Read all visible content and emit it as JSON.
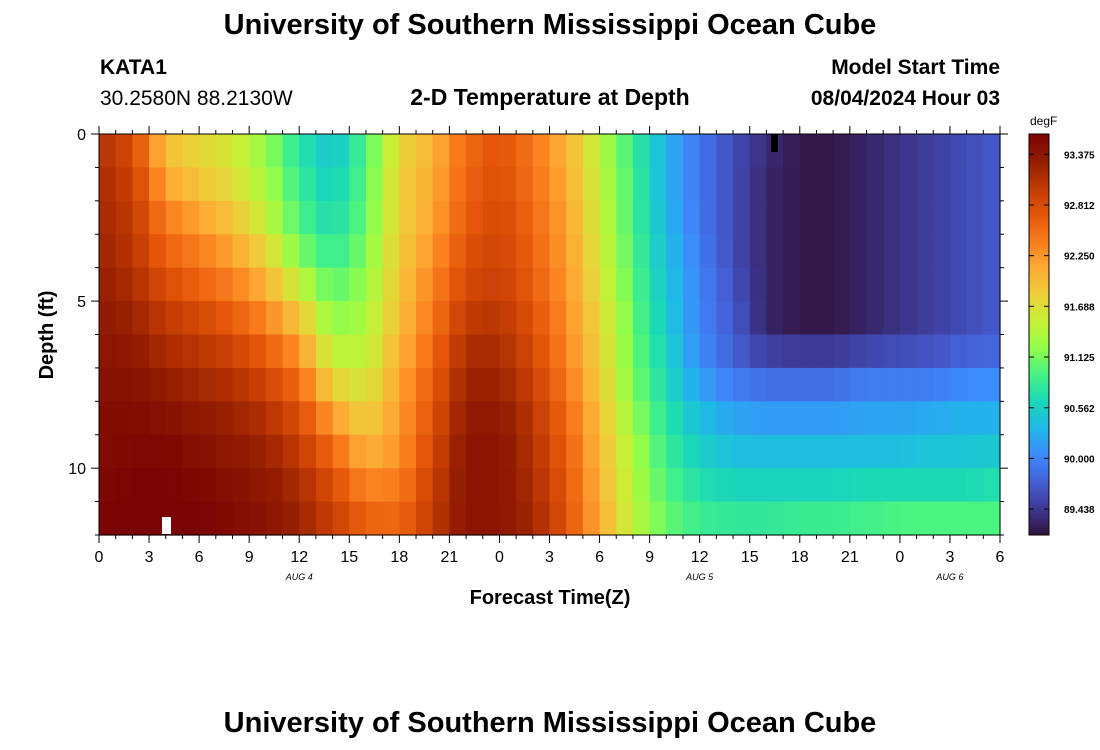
{
  "header": {
    "title": "University of Southern Mississippi Ocean Cube",
    "station_id": "KATA1",
    "station_coords": "30.2580N  88.2130W",
    "plot_title": "2-D Temperature at Depth",
    "model_start_label": "Model Start Time",
    "model_start_value": "08/04/2024 Hour 03"
  },
  "footer": {
    "title": "University of Southern Mississippi Ocean Cube"
  },
  "chart_data": {
    "type": "heatmap",
    "title": "2-D Temperature at Depth",
    "xlabel": "Forecast Time(Z)",
    "ylabel": "Depth (ft)",
    "x_range_hours": [
      0,
      54
    ],
    "y_range_ft": [
      0,
      12
    ],
    "x_tick_labels": [
      "0",
      "3",
      "6",
      "9",
      "12",
      "15",
      "18",
      "21",
      "0",
      "3",
      "6",
      "9",
      "12",
      "15",
      "18",
      "21",
      "0",
      "3",
      "6"
    ],
    "y_tick_labels": [
      "0",
      "5",
      "10"
    ],
    "date_labels": [
      {
        "text": "AUG 4",
        "hour": 12
      },
      {
        "text": "AUG 5",
        "hour": 36
      },
      {
        "text": "AUG 6",
        "hour": 51
      }
    ],
    "colorbar": {
      "unit": "degF",
      "min": 89.15,
      "max": 93.6,
      "tick_labels": [
        "93.375",
        "92.812",
        "92.250",
        "91.688",
        "91.125",
        "90.562",
        "90.000",
        "89.438"
      ]
    },
    "time_hours": [
      0,
      2,
      4,
      6,
      8,
      10,
      12,
      14,
      16,
      18,
      20,
      22,
      24,
      26,
      28,
      30,
      32,
      34,
      36,
      38,
      40,
      42,
      44,
      46,
      48,
      50,
      52,
      54
    ],
    "depth_ft": [
      0,
      1,
      2,
      3,
      4,
      5,
      6,
      7,
      8,
      9,
      10,
      11,
      12
    ],
    "temperature_degF": [
      [
        93.1,
        92.8,
        91.9,
        91.7,
        91.6,
        91.2,
        90.7,
        90.4,
        90.9,
        91.7,
        92.0,
        92.5,
        92.7,
        92.4,
        92.0,
        91.4,
        90.8,
        90.3,
        89.9,
        89.6,
        89.4,
        89.2,
        89.2,
        89.3,
        89.4,
        89.5,
        89.6,
        89.7
      ],
      [
        93.1,
        92.9,
        92.0,
        91.8,
        91.6,
        91.3,
        90.8,
        90.5,
        91.0,
        91.8,
        92.1,
        92.6,
        92.8,
        92.5,
        92.1,
        91.5,
        90.9,
        90.3,
        89.9,
        89.6,
        89.3,
        89.2,
        89.2,
        89.3,
        89.4,
        89.5,
        89.6,
        89.7
      ],
      [
        93.2,
        93.0,
        92.3,
        92.0,
        91.8,
        91.4,
        90.9,
        90.6,
        91.0,
        91.8,
        92.1,
        92.6,
        92.8,
        92.5,
        92.1,
        91.5,
        90.9,
        90.3,
        89.9,
        89.6,
        89.3,
        89.2,
        89.2,
        89.3,
        89.4,
        89.5,
        89.6,
        89.7
      ],
      [
        93.2,
        93.0,
        92.5,
        92.3,
        92.0,
        91.6,
        91.0,
        90.7,
        91.1,
        91.8,
        92.2,
        92.7,
        92.9,
        92.6,
        92.2,
        91.6,
        90.9,
        90.4,
        89.9,
        89.6,
        89.3,
        89.2,
        89.2,
        89.3,
        89.4,
        89.5,
        89.6,
        89.7
      ],
      [
        93.3,
        93.1,
        92.7,
        92.5,
        92.3,
        91.9,
        91.3,
        90.9,
        91.2,
        91.9,
        92.3,
        92.8,
        92.9,
        92.6,
        92.2,
        91.6,
        91.0,
        90.4,
        90.0,
        89.6,
        89.3,
        89.2,
        89.2,
        89.3,
        89.4,
        89.5,
        89.6,
        89.7
      ],
      [
        93.3,
        93.2,
        92.9,
        92.7,
        92.5,
        92.2,
        91.7,
        91.1,
        91.3,
        91.9,
        92.4,
        92.9,
        93.0,
        92.7,
        92.3,
        91.7,
        91.0,
        90.5,
        90.0,
        89.7,
        89.3,
        89.2,
        89.2,
        89.3,
        89.4,
        89.5,
        89.6,
        89.7
      ],
      [
        93.4,
        93.3,
        93.1,
        93.0,
        92.8,
        92.5,
        92.1,
        91.3,
        91.4,
        92.0,
        92.5,
        93.1,
        93.1,
        92.8,
        92.3,
        91.8,
        91.1,
        90.5,
        90.0,
        89.7,
        89.3,
        89.2,
        89.2,
        89.3,
        89.4,
        89.5,
        89.6,
        89.7
      ],
      [
        93.4,
        93.4,
        93.2,
        93.1,
        93.0,
        92.8,
        92.4,
        91.6,
        91.5,
        92.1,
        92.6,
        93.2,
        93.2,
        92.9,
        92.4,
        91.8,
        91.1,
        90.6,
        90.1,
        89.8,
        89.7,
        89.7,
        89.7,
        89.8,
        89.8,
        89.8,
        89.9,
        89.9
      ],
      [
        93.5,
        93.5,
        93.4,
        93.3,
        93.2,
        93.0,
        92.7,
        92.0,
        91.7,
        92.2,
        92.7,
        93.3,
        93.3,
        93.0,
        92.5,
        91.9,
        91.2,
        90.7,
        90.3,
        90.1,
        90.0,
        90.0,
        90.0,
        90.1,
        90.1,
        90.1,
        90.2,
        90.2
      ],
      [
        93.5,
        93.5,
        93.5,
        93.4,
        93.3,
        93.2,
        92.9,
        92.4,
        91.9,
        92.2,
        92.8,
        93.4,
        93.4,
        93.1,
        92.6,
        92.0,
        91.3,
        90.8,
        90.5,
        90.3,
        90.3,
        90.3,
        90.3,
        90.3,
        90.3,
        90.4,
        90.4,
        90.4
      ],
      [
        93.5,
        93.6,
        93.6,
        93.5,
        93.4,
        93.3,
        93.1,
        92.7,
        92.2,
        92.3,
        92.9,
        93.4,
        93.4,
        93.1,
        92.7,
        92.0,
        91.4,
        90.9,
        90.6,
        90.5,
        90.5,
        90.5,
        90.5,
        90.5,
        90.5,
        90.5,
        90.5,
        90.6
      ],
      [
        93.6,
        93.6,
        93.6,
        93.6,
        93.5,
        93.4,
        93.2,
        92.9,
        92.5,
        92.5,
        93.0,
        93.4,
        93.4,
        93.2,
        92.7,
        92.1,
        91.4,
        91.0,
        90.8,
        90.7,
        90.7,
        90.7,
        90.7,
        90.8,
        90.8,
        90.8,
        90.8,
        90.8
      ],
      [
        93.6,
        93.6,
        93.6,
        93.6,
        93.5,
        93.4,
        93.3,
        93.0,
        92.7,
        92.6,
        93.0,
        93.4,
        93.4,
        93.2,
        92.8,
        92.1,
        91.5,
        91.1,
        90.9,
        90.9,
        90.9,
        91.0,
        91.0,
        91.0,
        91.1,
        91.1,
        91.1,
        91.1
      ]
    ],
    "colorscale": [
      "#30123b",
      "#3e3994",
      "#4460d7",
      "#3d8afc",
      "#1fb8e8",
      "#1ad8b7",
      "#46f284",
      "#92fe4a",
      "#c7ef34",
      "#eece3a",
      "#fdaa34",
      "#f97b1c",
      "#e35609",
      "#c03a03",
      "#931d01",
      "#7a0403"
    ]
  }
}
